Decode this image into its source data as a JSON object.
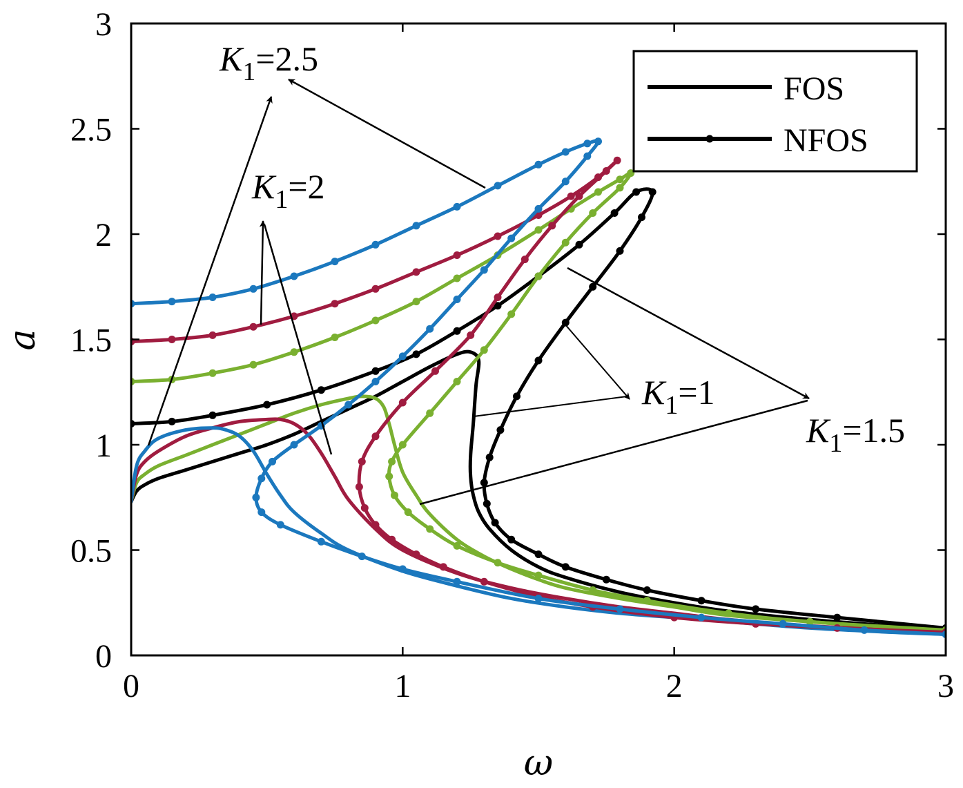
{
  "chart_data": {
    "type": "line",
    "title": "",
    "xlabel": "ω",
    "ylabel": "a",
    "xlim": [
      0,
      3
    ],
    "ylim": [
      0,
      3
    ],
    "xticks": [
      "0",
      "1",
      "2",
      "3"
    ],
    "yticks": [
      "0",
      "0.5",
      "1",
      "1.5",
      "2",
      "2.5",
      "3"
    ],
    "grid": false,
    "legend": {
      "position": "top-right",
      "entries": [
        {
          "label": "FOS",
          "style": "solid"
        },
        {
          "label": "NFOS",
          "style": "solid-dots"
        }
      ]
    },
    "colors": {
      "K1=1": "#000000",
      "K1=1.5": "#7ab030",
      "K1=2": "#a01c40",
      "K1=2.5": "#1b78be"
    },
    "series": [
      {
        "method": "FOS",
        "K1": 1,
        "color": "#000000",
        "x": [
          0,
          0.02,
          0.05,
          0.1,
          0.2,
          0.3,
          0.4,
          0.5,
          0.6,
          0.7,
          0.8,
          0.9,
          1.0,
          1.1,
          1.2,
          1.25,
          1.28,
          1.27,
          1.26,
          1.25,
          1.25,
          1.26,
          1.28,
          1.32,
          1.4,
          1.5,
          1.6,
          1.8,
          2.0,
          2.2,
          2.5,
          2.8,
          3.0
        ],
        "y": [
          0.73,
          0.78,
          0.81,
          0.84,
          0.88,
          0.92,
          0.96,
          1.0,
          1.05,
          1.11,
          1.17,
          1.23,
          1.3,
          1.37,
          1.43,
          1.44,
          1.4,
          1.28,
          1.1,
          0.95,
          0.85,
          0.76,
          0.68,
          0.6,
          0.5,
          0.42,
          0.37,
          0.3,
          0.25,
          0.21,
          0.17,
          0.14,
          0.12
        ]
      },
      {
        "method": "FOS",
        "K1": 1.5,
        "color": "#7ab030",
        "x": [
          0,
          0.02,
          0.05,
          0.1,
          0.2,
          0.3,
          0.4,
          0.5,
          0.6,
          0.7,
          0.8,
          0.85,
          0.9,
          0.93,
          0.95,
          0.97,
          1.0,
          1.05,
          1.1,
          1.2,
          1.3,
          1.4,
          1.5,
          1.6,
          1.8,
          2.0,
          2.2,
          2.5,
          2.8,
          3.0
        ],
        "y": [
          0.73,
          0.82,
          0.86,
          0.9,
          0.95,
          1.0,
          1.05,
          1.1,
          1.15,
          1.19,
          1.22,
          1.23,
          1.22,
          1.18,
          1.1,
          1.0,
          0.87,
          0.76,
          0.67,
          0.55,
          0.47,
          0.41,
          0.36,
          0.32,
          0.27,
          0.23,
          0.19,
          0.16,
          0.13,
          0.11
        ]
      },
      {
        "method": "FOS",
        "K1": 2,
        "color": "#a01c40",
        "x": [
          0,
          0.02,
          0.05,
          0.1,
          0.2,
          0.3,
          0.4,
          0.5,
          0.55,
          0.6,
          0.65,
          0.7,
          0.75,
          0.8,
          0.9,
          1.0,
          1.2,
          1.4,
          1.6,
          1.8,
          2.0,
          2.2,
          2.5,
          2.8,
          3.0
        ],
        "y": [
          0.73,
          0.86,
          0.92,
          0.97,
          1.04,
          1.08,
          1.11,
          1.12,
          1.12,
          1.1,
          1.05,
          0.96,
          0.85,
          0.74,
          0.6,
          0.5,
          0.39,
          0.32,
          0.27,
          0.23,
          0.2,
          0.17,
          0.14,
          0.12,
          0.11
        ]
      },
      {
        "method": "FOS",
        "K1": 2.5,
        "color": "#1b78be",
        "x": [
          0,
          0.02,
          0.05,
          0.1,
          0.2,
          0.3,
          0.35,
          0.4,
          0.45,
          0.5,
          0.55,
          0.6,
          0.7,
          0.8,
          1.0,
          1.2,
          1.4,
          1.6,
          1.8,
          2.0,
          2.2,
          2.5,
          2.8,
          3.0
        ],
        "y": [
          0.73,
          0.9,
          0.97,
          1.03,
          1.07,
          1.08,
          1.07,
          1.04,
          0.97,
          0.86,
          0.76,
          0.68,
          0.58,
          0.5,
          0.4,
          0.33,
          0.27,
          0.23,
          0.2,
          0.18,
          0.16,
          0.13,
          0.11,
          0.1
        ]
      },
      {
        "method": "NFOS",
        "K1": 1,
        "color": "#000000",
        "x": [
          0,
          0.15,
          0.3,
          0.5,
          0.7,
          0.9,
          1.05,
          1.2,
          1.35,
          1.5,
          1.65,
          1.78,
          1.86,
          1.92,
          1.88,
          1.8,
          1.7,
          1.6,
          1.5,
          1.42,
          1.36,
          1.32,
          1.3,
          1.31,
          1.34,
          1.4,
          1.5,
          1.6,
          1.75,
          1.9,
          2.1,
          2.3,
          2.6,
          3.0
        ],
        "y": [
          1.1,
          1.11,
          1.14,
          1.19,
          1.26,
          1.35,
          1.43,
          1.54,
          1.66,
          1.8,
          1.95,
          2.1,
          2.2,
          2.2,
          2.08,
          1.92,
          1.75,
          1.58,
          1.4,
          1.23,
          1.07,
          0.94,
          0.82,
          0.72,
          0.63,
          0.55,
          0.48,
          0.42,
          0.36,
          0.31,
          0.26,
          0.22,
          0.18,
          0.13
        ]
      },
      {
        "method": "NFOS",
        "K1": 1.5,
        "color": "#7ab030",
        "x": [
          0,
          0.15,
          0.3,
          0.45,
          0.6,
          0.75,
          0.9,
          1.05,
          1.2,
          1.35,
          1.5,
          1.62,
          1.72,
          1.8,
          1.84,
          1.8,
          1.7,
          1.6,
          1.5,
          1.4,
          1.3,
          1.2,
          1.1,
          1.0,
          0.96,
          0.95,
          0.97,
          1.02,
          1.1,
          1.2,
          1.35,
          1.5,
          1.7,
          1.9,
          2.2,
          2.5,
          3.0
        ],
        "y": [
          1.3,
          1.31,
          1.34,
          1.38,
          1.44,
          1.51,
          1.59,
          1.68,
          1.79,
          1.9,
          2.02,
          2.12,
          2.2,
          2.26,
          2.29,
          2.22,
          2.1,
          1.96,
          1.8,
          1.62,
          1.45,
          1.3,
          1.15,
          1.0,
          0.92,
          0.85,
          0.76,
          0.68,
          0.6,
          0.52,
          0.44,
          0.38,
          0.31,
          0.26,
          0.2,
          0.16,
          0.12
        ]
      },
      {
        "method": "NFOS",
        "K1": 2,
        "color": "#a01c40",
        "x": [
          0,
          0.15,
          0.3,
          0.45,
          0.6,
          0.75,
          0.9,
          1.05,
          1.2,
          1.35,
          1.5,
          1.62,
          1.72,
          1.79,
          1.75,
          1.65,
          1.55,
          1.45,
          1.35,
          1.25,
          1.12,
          1.0,
          0.9,
          0.85,
          0.84,
          0.86,
          0.9,
          0.96,
          1.05,
          1.15,
          1.3,
          1.5,
          1.7,
          2.0,
          2.3,
          2.6,
          3.0
        ],
        "y": [
          1.49,
          1.5,
          1.52,
          1.56,
          1.61,
          1.67,
          1.74,
          1.82,
          1.9,
          1.99,
          2.09,
          2.18,
          2.27,
          2.35,
          2.3,
          2.18,
          2.04,
          1.88,
          1.7,
          1.52,
          1.35,
          1.2,
          1.04,
          0.92,
          0.8,
          0.7,
          0.62,
          0.55,
          0.48,
          0.42,
          0.35,
          0.28,
          0.23,
          0.18,
          0.15,
          0.13,
          0.11
        ]
      },
      {
        "method": "NFOS",
        "K1": 2.5,
        "color": "#1b78be",
        "x": [
          0,
          0.15,
          0.3,
          0.45,
          0.6,
          0.75,
          0.9,
          1.05,
          1.2,
          1.35,
          1.5,
          1.6,
          1.68,
          1.72,
          1.68,
          1.6,
          1.5,
          1.4,
          1.3,
          1.2,
          1.1,
          1.0,
          0.9,
          0.8,
          0.7,
          0.6,
          0.52,
          0.48,
          0.46,
          0.48,
          0.55,
          0.7,
          0.85,
          1.0,
          1.2,
          1.5,
          1.8,
          2.1,
          2.4,
          2.7,
          3.0
        ],
        "y": [
          1.67,
          1.68,
          1.7,
          1.74,
          1.8,
          1.87,
          1.95,
          2.04,
          2.13,
          2.23,
          2.33,
          2.39,
          2.43,
          2.44,
          2.37,
          2.25,
          2.12,
          1.98,
          1.83,
          1.69,
          1.55,
          1.42,
          1.3,
          1.19,
          1.09,
          1.0,
          0.92,
          0.84,
          0.75,
          0.68,
          0.62,
          0.54,
          0.47,
          0.41,
          0.35,
          0.27,
          0.22,
          0.18,
          0.15,
          0.12,
          0.1
        ]
      }
    ],
    "annotations": [
      {
        "main": "K",
        "sub": "1",
        "value": "=2.5"
      },
      {
        "main": "K",
        "sub": "1",
        "value": "=2"
      },
      {
        "main": "K",
        "sub": "1",
        "value": "=1"
      },
      {
        "main": "K",
        "sub": "1",
        "value": "=1.5"
      }
    ]
  }
}
